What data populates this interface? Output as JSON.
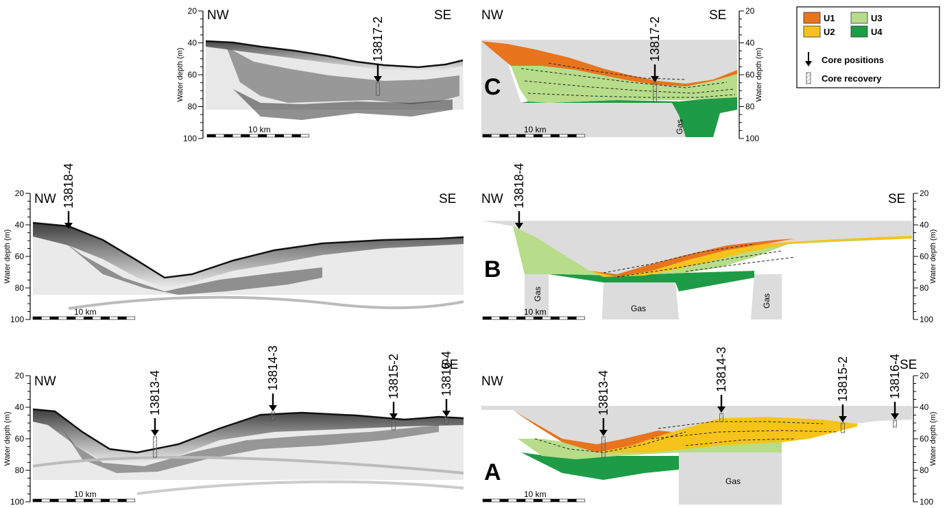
{
  "colors": {
    "U1": "#e8741e",
    "U2": "#f6c31a",
    "U3": "#b7dd8a",
    "U4": "#1e9b46",
    "bedrock": "#dcdcdc"
  },
  "legend": {
    "units": [
      {
        "key": "U1",
        "label": "U1"
      },
      {
        "key": "U2",
        "label": "U2"
      },
      {
        "key": "U3",
        "label": "U3"
      },
      {
        "key": "U4",
        "label": "U4"
      }
    ],
    "core_positions": "Core positions",
    "core_recovery": "Core recovery"
  },
  "axis": {
    "label": "Water depth (m)",
    "ticks": [
      "20",
      "40",
      "60",
      "80",
      "100"
    ]
  },
  "scale_bar": "10 km",
  "directions": {
    "nw": "NW",
    "se": "SE"
  },
  "gas_label": "Gas",
  "panels": {
    "C": {
      "label": "C",
      "cores": [
        "13817-2"
      ]
    },
    "B": {
      "label": "B",
      "cores": [
        "13818-4"
      ]
    },
    "A": {
      "label": "A",
      "cores": [
        "13813-4",
        "13814-3",
        "13815-2",
        "13816-4"
      ]
    }
  }
}
